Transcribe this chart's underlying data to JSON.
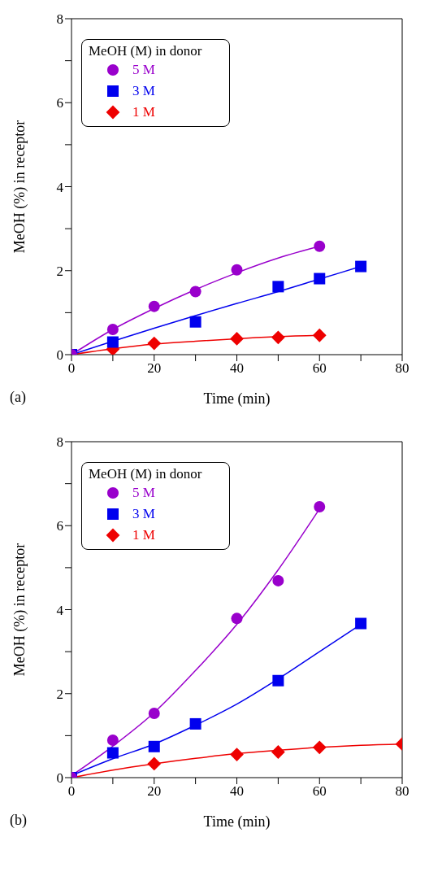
{
  "chart_data": [
    {
      "type": "scatter",
      "xlabel": "Time (min)",
      "ylabel": "MeOH (%) in receptor",
      "legend_title": "MeOH (M) in donor",
      "legend": "top left",
      "annotations": [
        "(a)"
      ],
      "xlim": [
        0,
        80
      ],
      "ylim": [
        0,
        8
      ],
      "xticks": [
        0,
        {
          "value": 10,
          "label": null
        },
        20,
        {
          "value": 30,
          "label": null
        },
        40,
        {
          "value": 50,
          "label": null
        },
        60,
        {
          "value": 70,
          "label": null
        },
        80
      ],
      "yticks": [
        0,
        {
          "value": 1,
          "label": null
        },
        2,
        {
          "value": 3,
          "label": null
        },
        4,
        {
          "value": 5,
          "label": null
        },
        6,
        {
          "value": 7,
          "label": null
        },
        8
      ],
      "series": [
        {
          "name": "5 M",
          "color": "#9900cc",
          "marker": "circle",
          "x": [
            0,
            10,
            20,
            30,
            40,
            60
          ],
          "values": [
            0,
            0.6,
            1.15,
            1.5,
            2.02,
            2.58
          ]
        },
        {
          "name": "3 M",
          "color": "#0000ee",
          "marker": "square",
          "x": [
            0,
            10,
            30,
            50,
            60,
            70
          ],
          "values": [
            0,
            0.3,
            0.78,
            1.62,
            1.81,
            2.1
          ]
        },
        {
          "name": "1 M",
          "color": "#ee0000",
          "marker": "diamond",
          "x": [
            10,
            20,
            40,
            50,
            60
          ],
          "values": [
            0.13,
            0.27,
            0.38,
            0.41,
            0.46
          ]
        },
        {
          "type": "line",
          "color": "#9900cc",
          "marker": "none",
          "x": [
            0,
            10,
            20,
            30,
            40,
            50,
            60
          ],
          "values": [
            0,
            0.6,
            1.1,
            1.55,
            1.95,
            2.3,
            2.58
          ]
        },
        {
          "type": "line",
          "color": "#0000ee",
          "marker": "none",
          "x": [
            0,
            10,
            20,
            30,
            40,
            50,
            60,
            70
          ],
          "values": [
            0,
            0.32,
            0.63,
            0.93,
            1.22,
            1.5,
            1.8,
            2.1
          ]
        },
        {
          "type": "line",
          "color": "#ee0000",
          "marker": "none",
          "x": [
            0,
            10,
            20,
            30,
            40,
            50,
            60
          ],
          "values": [
            0,
            0.14,
            0.25,
            0.32,
            0.38,
            0.43,
            0.46
          ]
        }
      ]
    },
    {
      "type": "scatter",
      "xlabel": "Time (min)",
      "ylabel": "MeOH (%) in receptor",
      "legend_title": "MeOH (M) in donor",
      "legend": "top left",
      "annotations": [
        "(b)"
      ],
      "xlim": [
        0,
        80
      ],
      "ylim": [
        0,
        8
      ],
      "xticks": [
        0,
        {
          "value": 10,
          "label": null
        },
        20,
        {
          "value": 30,
          "label": null
        },
        40,
        {
          "value": 50,
          "label": null
        },
        60,
        {
          "value": 70,
          "label": null
        },
        80
      ],
      "yticks": [
        0,
        {
          "value": 1,
          "label": null
        },
        2,
        {
          "value": 3,
          "label": null
        },
        4,
        {
          "value": 5,
          "label": null
        },
        6,
        {
          "value": 7,
          "label": null
        },
        8
      ],
      "series": [
        {
          "name": "5 M",
          "color": "#9900cc",
          "marker": "circle",
          "x": [
            0,
            10,
            20,
            40,
            50,
            60
          ],
          "values": [
            0,
            0.89,
            1.53,
            3.79,
            4.69,
            6.45
          ]
        },
        {
          "name": "3 M",
          "color": "#0000ee",
          "marker": "square",
          "x": [
            0,
            10,
            20,
            30,
            50,
            70
          ],
          "values": [
            0,
            0.59,
            0.74,
            1.28,
            2.31,
            3.67
          ]
        },
        {
          "name": "1 M",
          "color": "#ee0000",
          "marker": "diamond",
          "x": [
            20,
            40,
            50,
            60,
            80
          ],
          "values": [
            0.33,
            0.55,
            0.61,
            0.72,
            0.8
          ]
        },
        {
          "type": "line",
          "color": "#9900cc",
          "marker": "none",
          "x": [
            0,
            10,
            20,
            30,
            40,
            50,
            60
          ],
          "values": [
            0.05,
            0.75,
            1.55,
            2.55,
            3.65,
            4.95,
            6.4
          ]
        },
        {
          "type": "line",
          "color": "#0000ee",
          "marker": "none",
          "x": [
            0,
            10,
            20,
            30,
            40,
            50,
            60,
            70
          ],
          "values": [
            0.05,
            0.45,
            0.8,
            1.25,
            1.75,
            2.35,
            3.0,
            3.65
          ]
        },
        {
          "type": "line",
          "color": "#ee0000",
          "marker": "none",
          "x": [
            0,
            10,
            20,
            30,
            40,
            50,
            60,
            70,
            80
          ],
          "values": [
            0,
            0.18,
            0.33,
            0.46,
            0.57,
            0.65,
            0.72,
            0.77,
            0.8
          ]
        }
      ]
    }
  ]
}
